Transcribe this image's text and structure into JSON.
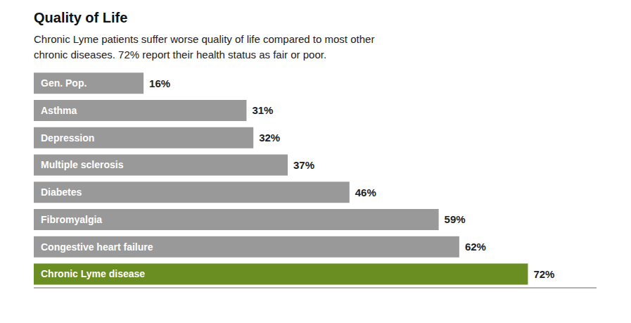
{
  "chart_data": {
    "type": "bar",
    "orientation": "horizontal",
    "title": "Quality of Life",
    "subtitle": "Chronic Lyme patients suffer worse quality of life compared to most other\nchronic diseases. 72% report their health status as fair or poor.",
    "categories": [
      "Gen. Pop.",
      "Asthma",
      "Depression",
      "Multiple sclerosis",
      "Diabetes",
      "Fibromyalgia",
      "Congestive heart failure",
      "Chronic Lyme disease"
    ],
    "values": [
      16,
      31,
      32,
      37,
      46,
      59,
      62,
      72
    ],
    "value_labels": [
      "16%",
      "31%",
      "32%",
      "37%",
      "46%",
      "59%",
      "62%",
      "72%"
    ],
    "colors": [
      "#999999",
      "#999999",
      "#999999",
      "#999999",
      "#999999",
      "#999999",
      "#999999",
      "#6b8e23"
    ],
    "xlim": [
      0,
      82
    ],
    "data_labels": true,
    "tick_labels": false,
    "grid": false
  }
}
